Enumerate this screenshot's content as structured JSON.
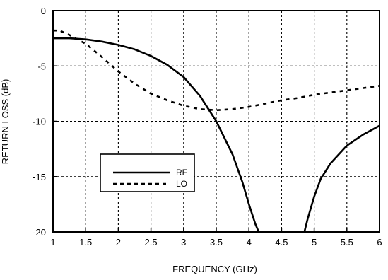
{
  "chart_data": {
    "type": "line",
    "title": "",
    "xlabel": "FREQUENCY (GHz)",
    "ylabel": "RETURN LOSS (dB)",
    "xlim": [
      1,
      6
    ],
    "ylim": [
      -20,
      0
    ],
    "x_ticks": [
      1,
      1.5,
      2,
      2.5,
      3,
      3.5,
      4,
      4.5,
      5,
      5.5,
      6
    ],
    "x_tick_labels": [
      "1",
      "1.5",
      "2",
      "2.5",
      "3",
      "3.5",
      "4",
      "4.5",
      "5",
      "5.5",
      "6"
    ],
    "y_ticks": [
      0,
      -5,
      -10,
      -15,
      -20
    ],
    "y_tick_labels": [
      "0",
      "-5",
      "-10",
      "-15",
      "-20"
    ],
    "grid": true,
    "legend_position": "lower-left",
    "series": [
      {
        "name": "RF",
        "style": "solid",
        "color": "#000000",
        "segments": [
          {
            "x": [
              1.0,
              1.25,
              1.5,
              1.75,
              2.0,
              2.25,
              2.5,
              2.75,
              3.0,
              3.25,
              3.5,
              3.75,
              3.9,
              4.0,
              4.1,
              4.15
            ],
            "y": [
              -2.5,
              -2.5,
              -2.6,
              -2.8,
              -3.1,
              -3.5,
              -4.1,
              -4.9,
              -6.0,
              -7.7,
              -10.0,
              -13.0,
              -15.5,
              -17.5,
              -19.3,
              -20.0
            ]
          },
          {
            "x": [
              4.85,
              4.9,
              5.0,
              5.1,
              5.25,
              5.5,
              5.75,
              6.0
            ],
            "y": [
              -20.0,
              -18.8,
              -16.8,
              -15.2,
              -13.8,
              -12.2,
              -11.2,
              -10.4
            ]
          }
        ]
      },
      {
        "name": "LO",
        "style": "dashed",
        "color": "#000000",
        "segments": [
          {
            "x": [
              1.0,
              1.1,
              1.25,
              1.5,
              1.75,
              2.0,
              2.25,
              2.5,
              2.75,
              3.0,
              3.25,
              3.5,
              3.75,
              4.0,
              4.25,
              4.5,
              4.75,
              5.0,
              5.25,
              5.5,
              5.75,
              6.0
            ],
            "y": [
              -1.8,
              -1.8,
              -2.2,
              -3.0,
              -4.2,
              -5.5,
              -6.6,
              -7.5,
              -8.1,
              -8.6,
              -8.9,
              -9.0,
              -8.9,
              -8.7,
              -8.4,
              -8.1,
              -7.9,
              -7.6,
              -7.4,
              -7.2,
              -7.0,
              -6.8
            ]
          }
        ]
      }
    ]
  }
}
